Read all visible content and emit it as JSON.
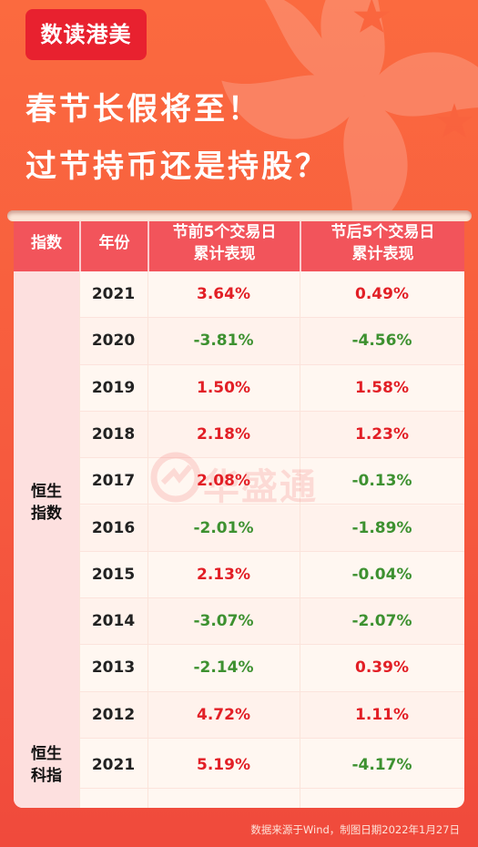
{
  "brand": {
    "badge": "数读港美"
  },
  "headline": {
    "line1": "春节长假将至！",
    "line2": "过节持币还是持股？"
  },
  "table": {
    "headers": {
      "index": "指数",
      "year": "年份",
      "pre_line1": "节前5个交易日",
      "pre_line2": "累计表现",
      "post_line1": "节后5个交易日",
      "post_line2": "累计表现"
    },
    "groups": [
      {
        "label_line1": "恒生",
        "label_line2": "指数"
      },
      {
        "label_line1": "恒生",
        "label_line2": "科指"
      }
    ],
    "rows": [
      {
        "year": "2021",
        "pre": "3.64%",
        "post": "0.49%"
      },
      {
        "year": "2020",
        "pre": "-3.81%",
        "post": "-4.56%"
      },
      {
        "year": "2019",
        "pre": "1.50%",
        "post": "1.58%"
      },
      {
        "year": "2018",
        "pre": "2.18%",
        "post": "1.23%"
      },
      {
        "year": "2017",
        "pre": "2.08%",
        "post": "-0.13%"
      },
      {
        "year": "2016",
        "pre": "-2.01%",
        "post": "-1.89%"
      },
      {
        "year": "2015",
        "pre": "2.13%",
        "post": "-0.04%"
      },
      {
        "year": "2014",
        "pre": "-3.07%",
        "post": "-2.07%"
      },
      {
        "year": "2013",
        "pre": "-2.14%",
        "post": "0.39%"
      },
      {
        "year": "2012",
        "pre": "4.72%",
        "post": "1.11%"
      },
      {
        "year": "2021",
        "pre": "5.19%",
        "post": "-4.17%"
      }
    ]
  },
  "watermark": {
    "text": "华盛通"
  },
  "footer": {
    "source": "数据来源于Wind，制图日期2022年1月27日"
  },
  "colors": {
    "positive": "#e21f26",
    "negative": "#3d9130",
    "header": "#f2545b",
    "badge": "#e8212f"
  }
}
